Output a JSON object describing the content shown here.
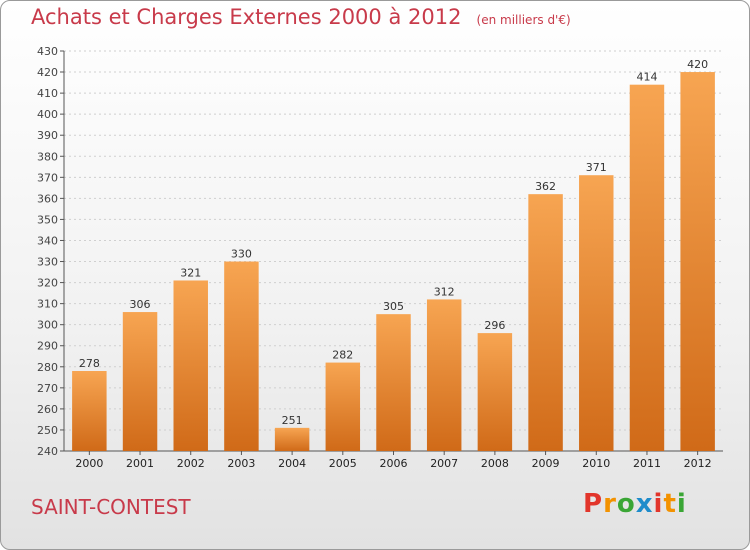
{
  "header": {
    "title": "Achats et Charges Externes 2000 à 2012",
    "unit": "(en milliers d'€)"
  },
  "footer": {
    "city": "SAINT-CONTEST",
    "logo": "Proxiti"
  },
  "colors": {
    "title": "#c83a4a",
    "bar_light": "#f7a552",
    "bar_dark": "#d06a18",
    "grid": "#cfcfcf",
    "logo_letters": [
      "#e2352b",
      "#f39200",
      "#3aa635",
      "#1e8ccb",
      "#e2352b",
      "#f39200",
      "#3aa635"
    ]
  },
  "chart_data": {
    "type": "bar",
    "title": "Achats et Charges Externes 2000 à 2012",
    "subtitle": "(en milliers d'€)",
    "categories": [
      "2000",
      "2001",
      "2002",
      "2003",
      "2004",
      "2005",
      "2006",
      "2007",
      "2008",
      "2009",
      "2010",
      "2011",
      "2012"
    ],
    "values": [
      278,
      306,
      321,
      330,
      251,
      282,
      305,
      312,
      296,
      362,
      371,
      414,
      420
    ],
    "ylim": [
      240,
      430
    ],
    "ytick_step": 10,
    "grid": true,
    "data_labels": true
  }
}
